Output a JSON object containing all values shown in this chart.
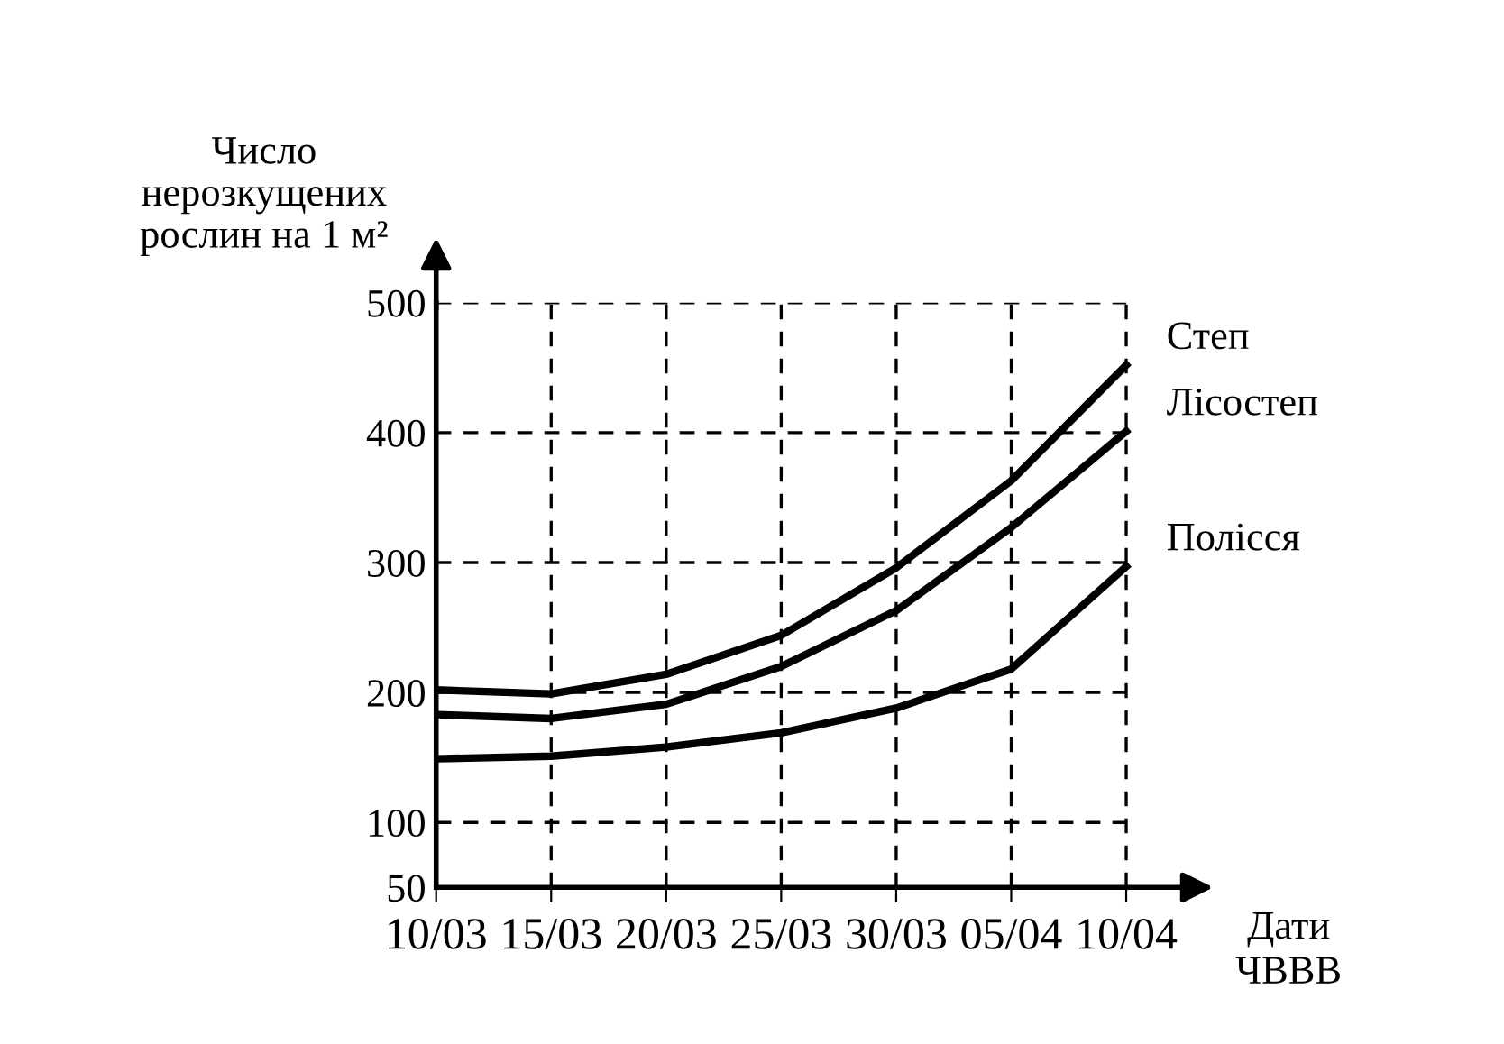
{
  "chart_data": {
    "type": "line",
    "xlabel": "Дати\nЧВВВ",
    "ylabel": "Число\nнерозкущених\nрослин на 1 м²",
    "categories": [
      "10/03",
      "15/03",
      "20/03",
      "25/03",
      "30/03",
      "05/04",
      "10/04"
    ],
    "series": [
      {
        "name": "Степ",
        "color": "#000000",
        "values": [
          202,
          199,
          214,
          244,
          296,
          363,
          452
        ]
      },
      {
        "name": "Лісостеп",
        "color": "#000000",
        "values": [
          183,
          180,
          191,
          220,
          263,
          327,
          401
        ]
      },
      {
        "name": "Полісся",
        "color": "#000000",
        "values": [
          149,
          151,
          158,
          169,
          188,
          218,
          297
        ]
      }
    ],
    "ylim": [
      50,
      500
    ],
    "yticks": [
      50,
      100,
      200,
      300,
      400,
      500
    ],
    "grid": true,
    "legend": false,
    "marker": "none",
    "line_style": "solid"
  }
}
